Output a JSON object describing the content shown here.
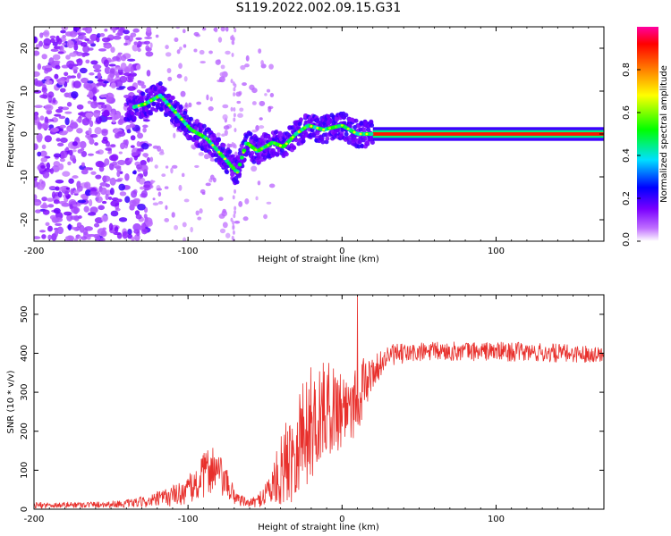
{
  "figure": {
    "title": "S119.2022.002.09.15.G31"
  },
  "chart_data": [
    {
      "type": "heatmap",
      "xlabel": "Height of straight line (km)",
      "ylabel": "Frequency (Hz)",
      "xlim": [
        -200,
        170
      ],
      "ylim": [
        -25,
        25
      ],
      "xticks": [
        -200,
        -100,
        0,
        100
      ],
      "yticks": [
        -20,
        -10,
        0,
        10,
        20
      ],
      "colorbar": {
        "label": "Normalized spectral amplitude",
        "range": [
          0,
          1
        ],
        "ticks": [
          "0.0",
          "0.2",
          "0.4",
          "0.6",
          "0.8"
        ],
        "tick_values": [
          0,
          0.2,
          0.4,
          0.6,
          0.8
        ],
        "colors": [
          "#ffffff",
          "#7a00ff",
          "#0000ff",
          "#00e0ff",
          "#00ff00",
          "#ffff00",
          "#ff8000",
          "#ff0000",
          "#ff00a0"
        ]
      },
      "ridge": {
        "description_points": [
          {
            "x": -138,
            "y": 6
          },
          {
            "x": -128,
            "y": 7
          },
          {
            "x": -118,
            "y": 9
          },
          {
            "x": -108,
            "y": 5
          },
          {
            "x": -98,
            "y": 1
          },
          {
            "x": -88,
            "y": -1
          },
          {
            "x": -78,
            "y": -5
          },
          {
            "x": -68,
            "y": -9
          },
          {
            "x": -62,
            "y": -2
          },
          {
            "x": -55,
            "y": -4
          },
          {
            "x": -45,
            "y": -2
          },
          {
            "x": -38,
            "y": -3
          },
          {
            "x": -30,
            "y": 0
          },
          {
            "x": -22,
            "y": 2
          },
          {
            "x": -12,
            "y": 1
          },
          {
            "x": 0,
            "y": 2
          },
          {
            "x": 10,
            "y": 0
          },
          {
            "x": 20,
            "y": 0
          },
          {
            "x": 170,
            "y": 0
          }
        ],
        "steady_line": {
          "x_start": 20,
          "x_end": 170,
          "y": 0
        }
      }
    },
    {
      "type": "line",
      "xlabel": "Height of straight line (km)",
      "ylabel": "SNR (10 * v/v)",
      "xlim": [
        -200,
        170
      ],
      "ylim": [
        0,
        550
      ],
      "xticks": [
        -200,
        -100,
        0,
        100
      ],
      "yticks": [
        0,
        100,
        200,
        300,
        400,
        500
      ],
      "color": "#e8302c",
      "envelope": [
        {
          "x": -200,
          "mean": 10,
          "amp": 8
        },
        {
          "x": -160,
          "mean": 12,
          "amp": 8
        },
        {
          "x": -140,
          "mean": 14,
          "amp": 10
        },
        {
          "x": -125,
          "mean": 20,
          "amp": 15
        },
        {
          "x": -115,
          "mean": 30,
          "amp": 25
        },
        {
          "x": -105,
          "mean": 40,
          "amp": 30
        },
        {
          "x": -95,
          "mean": 60,
          "amp": 45
        },
        {
          "x": -85,
          "mean": 110,
          "amp": 70
        },
        {
          "x": -78,
          "mean": 80,
          "amp": 50
        },
        {
          "x": -70,
          "mean": 35,
          "amp": 25
        },
        {
          "x": -62,
          "mean": 15,
          "amp": 10
        },
        {
          "x": -55,
          "mean": 20,
          "amp": 15
        },
        {
          "x": -45,
          "mean": 60,
          "amp": 55
        },
        {
          "x": -35,
          "mean": 130,
          "amp": 120
        },
        {
          "x": -28,
          "mean": 180,
          "amp": 150
        },
        {
          "x": -20,
          "mean": 220,
          "amp": 150
        },
        {
          "x": -10,
          "mean": 260,
          "amp": 120
        },
        {
          "x": 0,
          "mean": 260,
          "amp": 110
        },
        {
          "x": 10,
          "mean": 290,
          "amp": 100
        },
        {
          "x": 20,
          "mean": 350,
          "amp": 40
        },
        {
          "x": 30,
          "mean": 395,
          "amp": 28
        },
        {
          "x": 60,
          "mean": 405,
          "amp": 25
        },
        {
          "x": 100,
          "mean": 405,
          "amp": 25
        },
        {
          "x": 140,
          "mean": 400,
          "amp": 25
        },
        {
          "x": 170,
          "mean": 398,
          "amp": 20
        }
      ],
      "peak": {
        "x": 10,
        "y": 555
      }
    }
  ]
}
